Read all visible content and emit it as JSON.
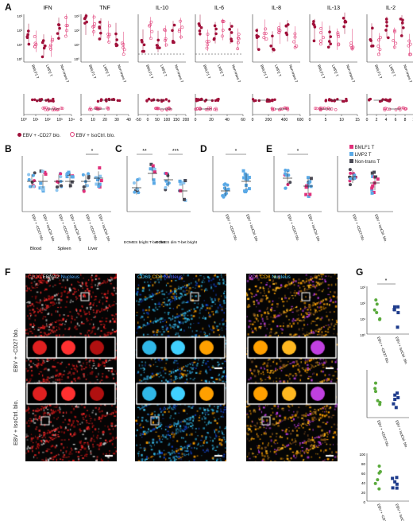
{
  "panel_labels": {
    "a": "A",
    "b": "B",
    "c": "C",
    "d": "D",
    "e": "E",
    "f": "F",
    "g": "G"
  },
  "panel_a": {
    "cytokines": [
      "IFN",
      "TNF",
      "IL-10",
      "IL-6",
      "IL-8",
      "IL-13",
      "IL-2"
    ],
    "groups": [
      "BMLF1 T",
      "LMP2 T",
      "Non-trans T"
    ],
    "legend": {
      "cd27": "EBV + -CD27 blo.",
      "isoctrl": "EBV + IsoCtrl. blo."
    },
    "bottom_ticks": [
      [
        "10⁰",
        "10¹",
        "10²",
        "10³",
        "10⁴"
      ],
      [
        "0",
        "10",
        "20",
        "30",
        "40"
      ],
      [
        "-50",
        "0",
        "50",
        "100",
        "150",
        "200"
      ],
      [
        "0",
        "20",
        "40",
        "60"
      ],
      [
        "0",
        "200",
        "400",
        "600"
      ],
      [
        "0",
        "5",
        "10",
        "15"
      ],
      [
        "0",
        "2",
        "4",
        "6",
        "8",
        "10"
      ]
    ],
    "top_ticks": [
      "10³",
      "10²",
      "10¹",
      "10⁰"
    ]
  },
  "panel_b": {
    "xlabels": [
      "Blood",
      "Spleen",
      "Liver"
    ],
    "star": "*",
    "cats": [
      "EBV + -CD27 blo.",
      "EBV + IsoCtrl. blo."
    ]
  },
  "panel_c": {
    "xlabels": [
      "EOMES bright T-bet dim",
      "EOMES dim T-bet bright"
    ],
    "stars": [
      "**",
      "***"
    ]
  },
  "panel_d": {
    "star": "*",
    "cats": [
      "EBV + -CD27 blo.",
      "EBV + IsoCtrl. blo."
    ]
  },
  "panel_e": {
    "star": "*",
    "legend": [
      "BMLF1 T",
      "LMP2 T",
      "Non-trans T"
    ],
    "colors": [
      "#e0307a",
      "#5aa9e6",
      "#4a4a55"
    ]
  },
  "panel_f": {
    "titles": {
      "c1": [
        "CD20",
        "EBNA2",
        "Nucleus"
      ],
      "c2": [
        "CD69",
        "CD8",
        "Nucleus"
      ],
      "c3": [
        "PD1",
        "CD8",
        "Nucleus"
      ]
    },
    "rows": [
      "EBV + -CD27 blo.",
      "EBV + IsoCtrl. blo."
    ]
  },
  "panel_g": {
    "top": {
      "ticks": [
        "10³",
        "10²",
        "10¹",
        "10⁰"
      ],
      "star": "*"
    },
    "mid": {
      "ticks": []
    },
    "bot": {
      "ticks": [
        "100",
        "80",
        "60",
        "40",
        "20",
        "0"
      ]
    },
    "cats": [
      "EBV + -CD27 blo.",
      "EBV + IsoCtrl. blo."
    ]
  },
  "colors": {
    "cd27": "#a0103a",
    "iso": "#e0407a",
    "blue": "#4a90d9",
    "green": "#5aaa3c",
    "navy": "#1e3c8c"
  }
}
